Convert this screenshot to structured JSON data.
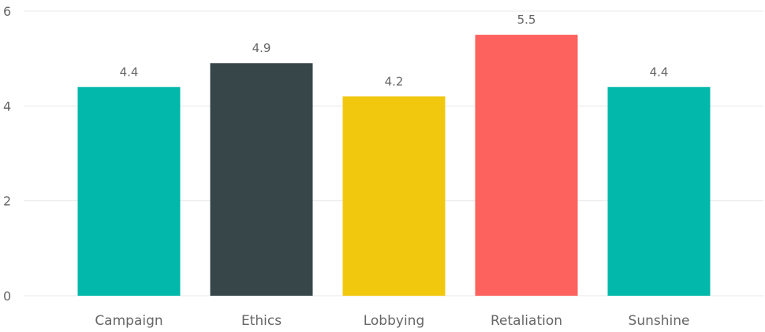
{
  "chart_data": {
    "type": "bar",
    "title": "",
    "xlabel": "",
    "ylabel": "",
    "categories": [
      "Campaign",
      "Ethics",
      "Lobbying",
      "Retaliation",
      "Sunshine"
    ],
    "values": [
      4.4,
      4.9,
      4.2,
      5.5,
      4.4
    ],
    "data_labels": [
      "4.4",
      "4.9",
      "4.2",
      "5.5",
      "4.4"
    ],
    "colors": [
      "#01B8AA",
      "#374649",
      "#F2C80F",
      "#FD625E",
      "#01B8AA"
    ],
    "ylim": [
      0,
      6
    ],
    "yticks": [
      0,
      2,
      4,
      6
    ],
    "grid": true,
    "legend": "none"
  }
}
